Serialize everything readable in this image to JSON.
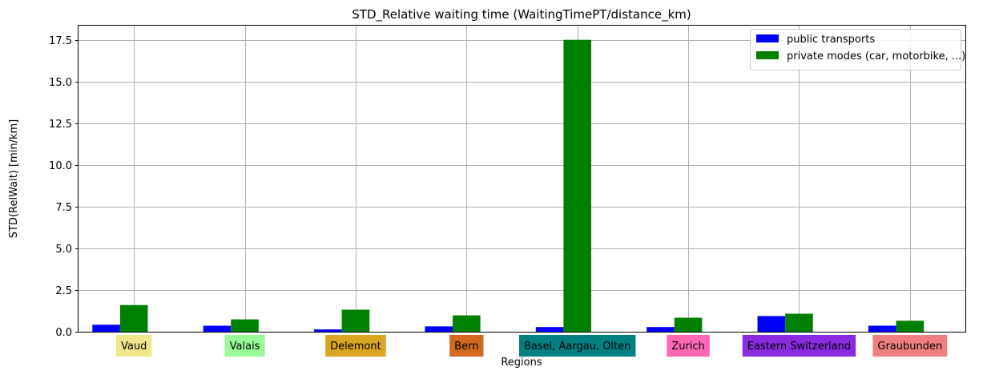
{
  "chart_data": {
    "type": "bar",
    "title": "STD_Relative waiting time (WaitingTimePT/distance_km)",
    "xlabel": "Regions",
    "ylabel": "STD(RelWait) [min/km]",
    "ylim": [
      0,
      18.35
    ],
    "yticks": [
      "0.0",
      "2.5",
      "5.0",
      "7.5",
      "10.0",
      "12.5",
      "15.0",
      "17.5"
    ],
    "grid": true,
    "legend_position": "top-right",
    "categories": [
      "Vaud",
      "Valais",
      "Delemont",
      "Bern",
      "Basel, Aargau, Olten",
      "Zurich",
      "Eastern Switzerland",
      "Graubunden"
    ],
    "category_colors": [
      "#f0e68c",
      "#98fb98",
      "#daa520",
      "#d2691e",
      "#008080",
      "#ff69b4",
      "#8a2be2",
      "#f08080"
    ],
    "series": [
      {
        "name": "public transports",
        "color": "#0000ff",
        "values": [
          0.42,
          0.36,
          0.14,
          0.32,
          0.28,
          0.28,
          0.94,
          0.36
        ]
      },
      {
        "name": "private modes (car, motorbike, ...)",
        "color": "#008000",
        "values": [
          1.6,
          0.74,
          1.32,
          0.98,
          17.5,
          0.84,
          1.08,
          0.66
        ]
      }
    ]
  }
}
